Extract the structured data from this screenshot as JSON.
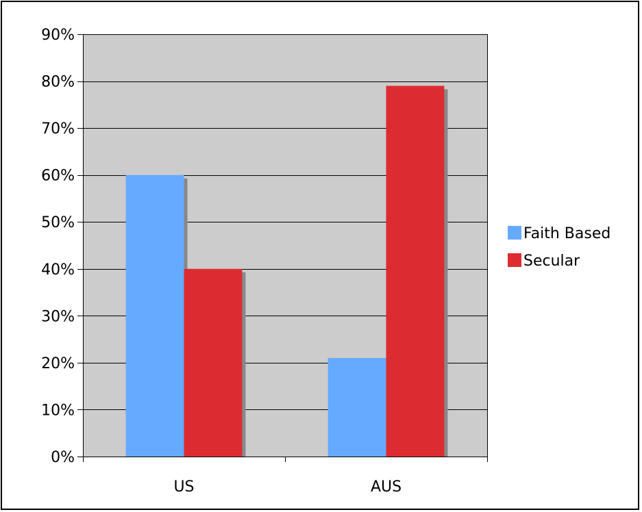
{
  "chart_data": {
    "type": "bar",
    "title": "",
    "xlabel": "",
    "ylabel": "",
    "categories": [
      "US",
      "AUS"
    ],
    "series": [
      {
        "name": "Faith Based",
        "values": [
          0.6,
          0.21
        ],
        "color": "#66aaff"
      },
      {
        "name": "Secular",
        "values": [
          0.4,
          0.79
        ],
        "color": "#dd2c31"
      }
    ],
    "ylim": [
      0,
      0.9
    ],
    "yticks": [
      0,
      0.1,
      0.2,
      0.3,
      0.4,
      0.5,
      0.6,
      0.7,
      0.8,
      0.9
    ],
    "ytick_labels": [
      "0%",
      "10%",
      "20%",
      "30%",
      "40%",
      "50%",
      "60%",
      "70%",
      "80%",
      "90%"
    ],
    "grid": true,
    "legend_position": "right",
    "plot_background": "#cccccc",
    "shadow_color": "#888888"
  }
}
